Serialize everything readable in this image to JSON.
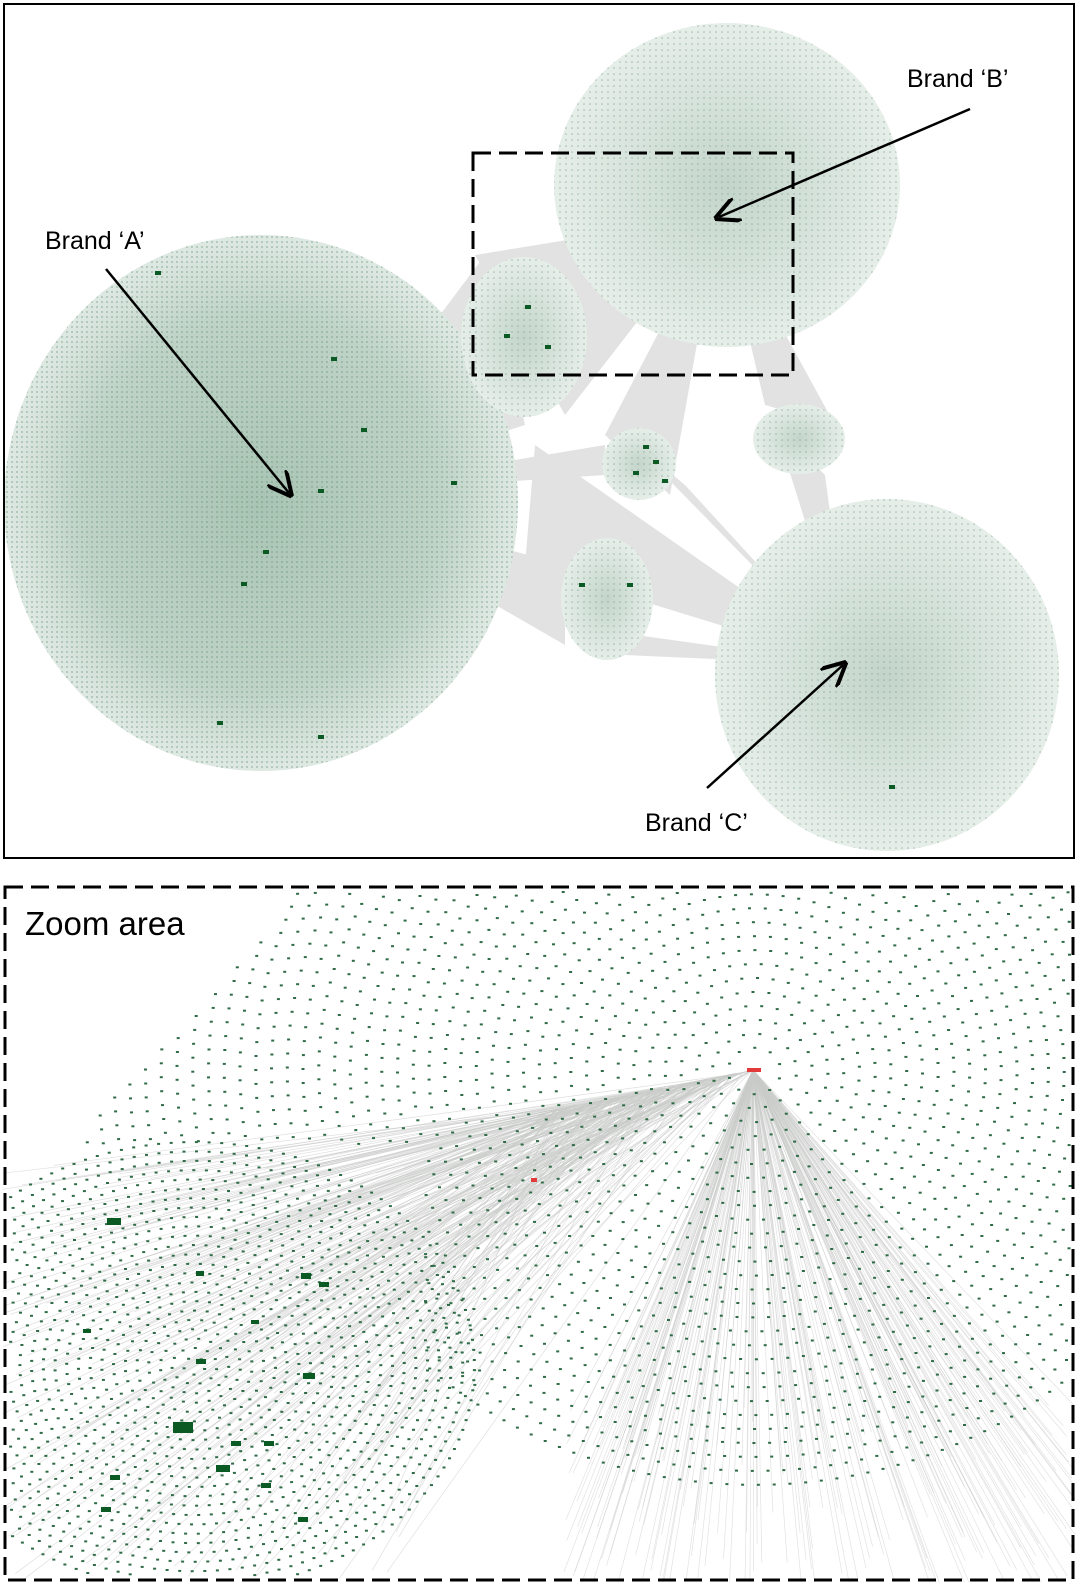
{
  "overview": {
    "labels": {
      "brand_a": "Brand ‘A’",
      "brand_b": "Brand ‘B’",
      "brand_c": "Brand ‘C’"
    }
  },
  "zoom": {
    "title": "Zoom area"
  },
  "colors": {
    "node": "#2f6b46",
    "node_dark": "#0b5a23",
    "edge": "#c9cbc9",
    "highlight": "#e23a3a",
    "cluster_fill": "#dfe9e3"
  }
}
